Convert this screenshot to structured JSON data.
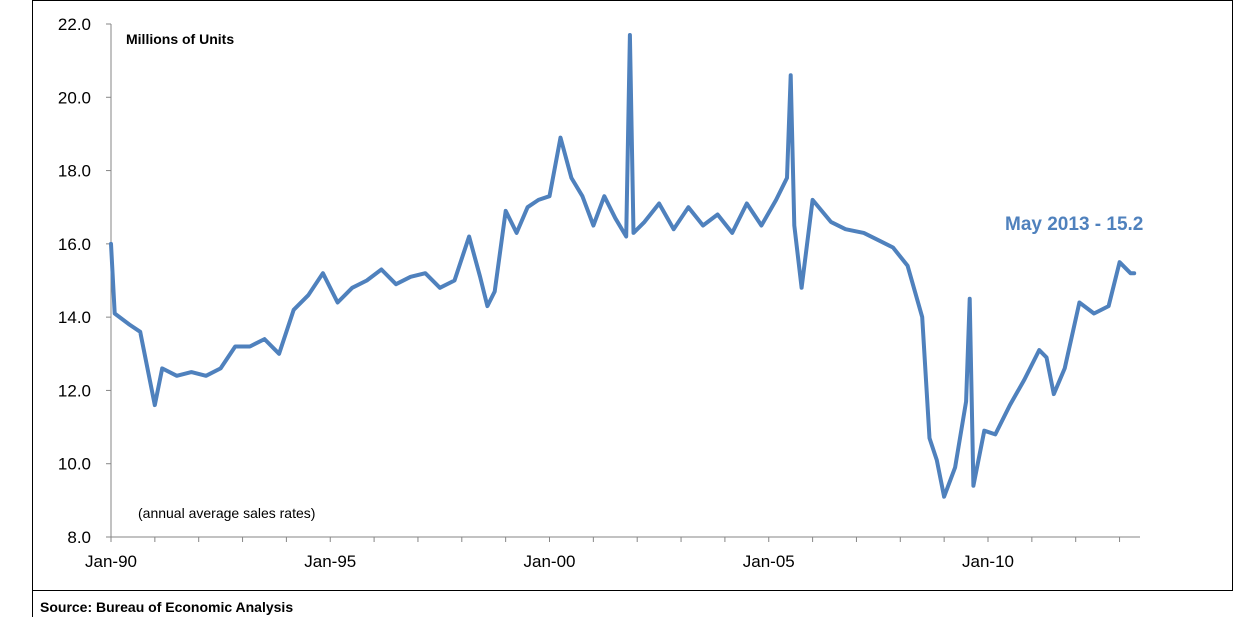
{
  "chart_data": {
    "type": "line",
    "ylabel": "Millions of Units",
    "note": "(annual average sales rates)",
    "source": "Source: Bureau of Economic Analysis",
    "callout": "May 2013 - 15.2",
    "ylim": [
      8,
      22
    ],
    "yticks": [
      "8.0",
      "10.0",
      "12.0",
      "14.0",
      "16.0",
      "18.0",
      "20.0",
      "22.0"
    ],
    "ytick_values": [
      8,
      10,
      12,
      14,
      16,
      18,
      20,
      22
    ],
    "xticks": [
      "Jan-90",
      "Jan-95",
      "Jan-00",
      "Jan-05",
      "Jan-10"
    ],
    "xtick_values": [
      "1990-01",
      "1995-01",
      "2000-01",
      "2005-01",
      "2010-01"
    ],
    "x_range": [
      "1990-01",
      "2013-05"
    ],
    "grid": false,
    "line_color": "#4F81BD",
    "series": [
      {
        "x": [
          "1990-01",
          "1990-02",
          "1990-06",
          "1990-09",
          "1991-01",
          "1991-03",
          "1991-07",
          "1991-11",
          "1992-03",
          "1992-07",
          "1992-11",
          "1993-03",
          "1993-07",
          "1993-11",
          "1994-03",
          "1994-07",
          "1994-11",
          "1995-03",
          "1995-07",
          "1995-11",
          "1996-03",
          "1996-07",
          "1996-11",
          "1997-03",
          "1997-07",
          "1997-11",
          "1998-03",
          "1998-06",
          "1998-08",
          "1998-10",
          "1999-01",
          "1999-04",
          "1999-07",
          "1999-10",
          "2000-01",
          "2000-04",
          "2000-07",
          "2000-10",
          "2001-01",
          "2001-04",
          "2001-07",
          "2001-10",
          "2001-11",
          "2001-12",
          "2002-03",
          "2002-07",
          "2002-11",
          "2003-03",
          "2003-07",
          "2003-11",
          "2004-03",
          "2004-07",
          "2004-11",
          "2005-03",
          "2005-06",
          "2005-07",
          "2005-08",
          "2005-10",
          "2006-01",
          "2006-06",
          "2006-10",
          "2007-03",
          "2007-07",
          "2007-11",
          "2008-03",
          "2008-07",
          "2008-09",
          "2008-11",
          "2009-01",
          "2009-04",
          "2009-07",
          "2009-08",
          "2009-09",
          "2009-12",
          "2010-03",
          "2010-07",
          "2010-11",
          "2011-03",
          "2011-05",
          "2011-07",
          "2011-10",
          "2012-02",
          "2012-06",
          "2012-10",
          "2013-01",
          "2013-04",
          "2013-05"
        ],
        "values": [
          16.0,
          14.1,
          13.8,
          13.6,
          11.6,
          12.6,
          12.4,
          12.5,
          12.4,
          12.6,
          13.2,
          13.2,
          13.4,
          13.0,
          14.2,
          14.6,
          15.2,
          14.4,
          14.8,
          15.0,
          15.3,
          14.9,
          15.1,
          15.2,
          14.8,
          15.0,
          16.2,
          15.1,
          14.3,
          14.7,
          16.9,
          16.3,
          17.0,
          17.2,
          17.3,
          18.9,
          17.8,
          17.3,
          16.5,
          17.3,
          16.7,
          16.2,
          21.7,
          16.3,
          16.6,
          17.1,
          16.4,
          17.0,
          16.5,
          16.8,
          16.3,
          17.1,
          16.5,
          17.2,
          17.8,
          20.6,
          16.5,
          14.8,
          17.2,
          16.6,
          16.4,
          16.3,
          16.1,
          15.9,
          15.4,
          14.0,
          10.7,
          10.1,
          9.1,
          9.9,
          11.7,
          14.5,
          9.4,
          10.9,
          10.8,
          11.6,
          12.3,
          13.1,
          12.9,
          11.9,
          12.6,
          14.4,
          14.1,
          14.3,
          15.5,
          15.2,
          15.2
        ]
      }
    ]
  }
}
